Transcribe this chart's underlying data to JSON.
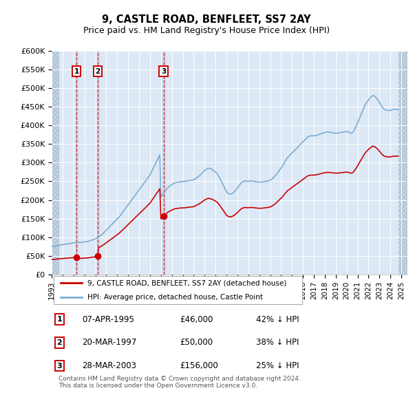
{
  "title": "9, CASTLE ROAD, BENFLEET, SS7 2AY",
  "subtitle": "Price paid vs. HM Land Registry's House Price Index (HPI)",
  "ylabel_ticks": [
    "£0",
    "£50K",
    "£100K",
    "£150K",
    "£200K",
    "£250K",
    "£300K",
    "£350K",
    "£400K",
    "£450K",
    "£500K",
    "£550K",
    "£600K"
  ],
  "ylim": [
    0,
    600000
  ],
  "ytick_vals": [
    0,
    50000,
    100000,
    150000,
    200000,
    250000,
    300000,
    350000,
    400000,
    450000,
    500000,
    550000,
    600000
  ],
  "sales": [
    {
      "date_num": 1995.27,
      "price": 46000,
      "label": "1"
    },
    {
      "date_num": 1997.22,
      "price": 50000,
      "label": "2"
    },
    {
      "date_num": 2003.24,
      "price": 156000,
      "label": "3"
    }
  ],
  "sale_color": "#cc0000",
  "hpi_color": "#7aadd4",
  "vline_color": "#cc0000",
  "bg_color": "#dce8f5",
  "legend_entries": [
    "9, CASTLE ROAD, BENFLEET, SS7 2AY (detached house)",
    "HPI: Average price, detached house, Castle Point"
  ],
  "table_rows": [
    {
      "num": "1",
      "date": "07-APR-1995",
      "price": "£46,000",
      "hpi": "42% ↓ HPI"
    },
    {
      "num": "2",
      "date": "20-MAR-1997",
      "price": "£50,000",
      "hpi": "38% ↓ HPI"
    },
    {
      "num": "3",
      "date": "28-MAR-2003",
      "price": "£156,000",
      "hpi": "25% ↓ HPI"
    }
  ],
  "footer": "Contains HM Land Registry data © Crown copyright and database right 2024.\nThis data is licensed under the Open Government Licence v3.0.",
  "xlim_start": 1993.0,
  "xlim_end": 2025.5
}
